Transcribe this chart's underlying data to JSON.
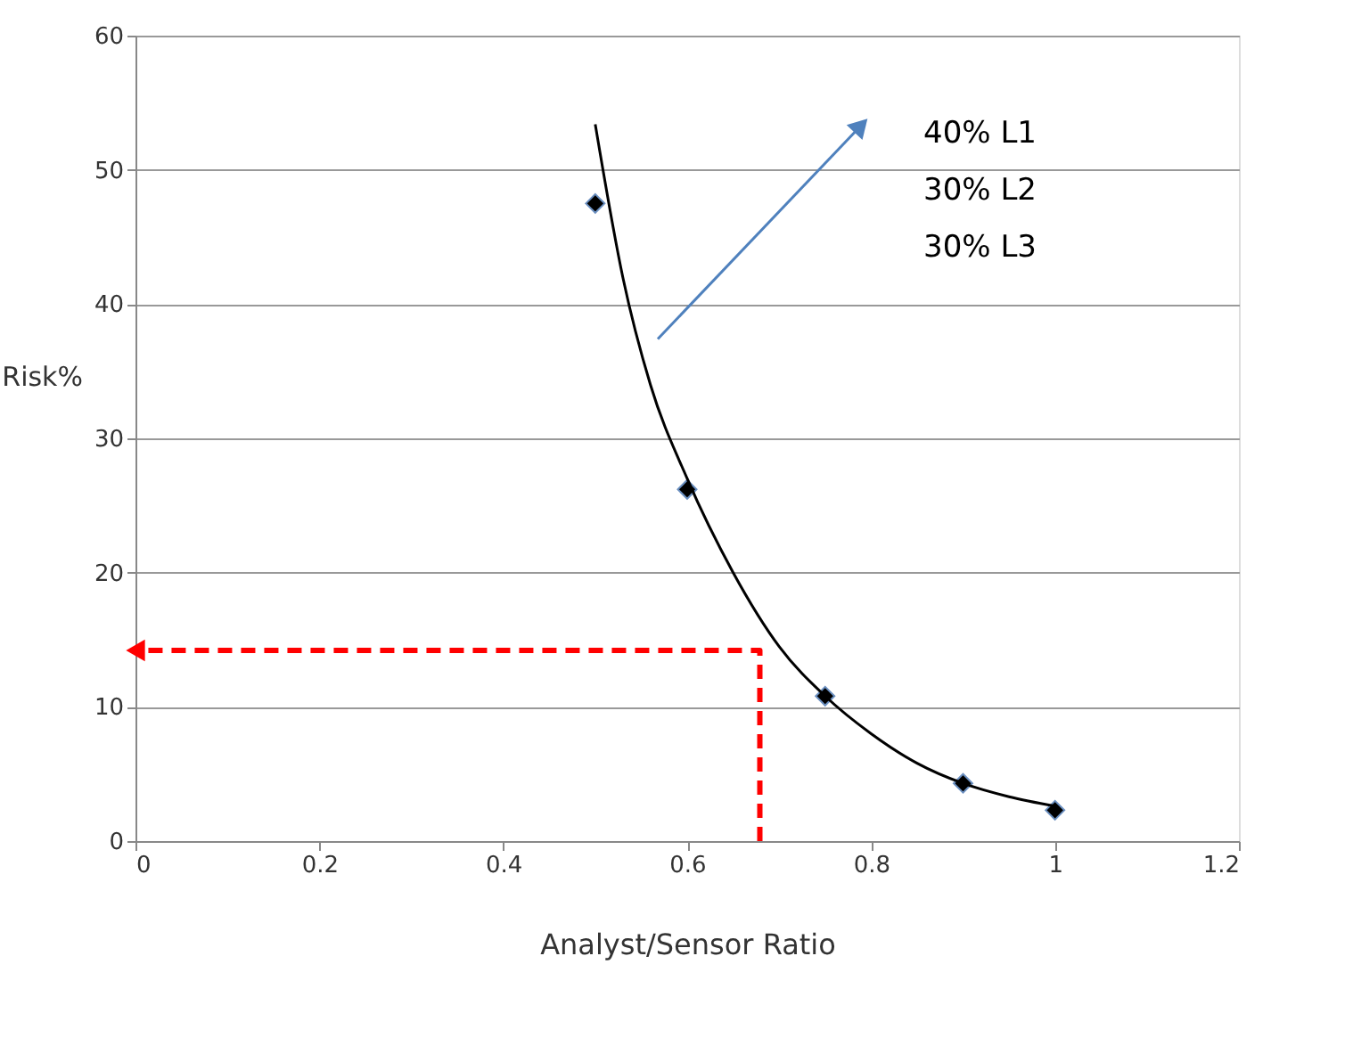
{
  "chart_data": {
    "type": "scatter",
    "xlabel": "Analyst/Sensor Ratio",
    "ylabel": "Risk%",
    "xlim": [
      0,
      1.2
    ],
    "xticks": [
      0,
      0.2,
      0.4,
      0.6,
      0.8,
      1,
      1.2
    ],
    "ylim": [
      0,
      60
    ],
    "yticks": [
      0,
      10,
      20,
      30,
      40,
      50,
      60
    ],
    "grid": "y",
    "series": [
      {
        "marker": "diamond",
        "color": "#000000",
        "x": [
          0.5,
          0.6,
          0.75,
          0.9,
          1.0
        ],
        "values": [
          47.5,
          26.2,
          10.8,
          4.3,
          2.3
        ]
      },
      {
        "type": "line",
        "line_style": "solid",
        "color": "#000000",
        "x": [
          0.5,
          0.53,
          0.56,
          0.6,
          0.65,
          0.7,
          0.75,
          0.8,
          0.85,
          0.9,
          0.95,
          1.0
        ],
        "values": [
          53.4,
          42,
          34,
          27,
          20,
          14.5,
          10.8,
          8,
          5.8,
          4.3,
          3.3,
          2.6
        ]
      },
      {
        "type": "line",
        "line_style": "dashed",
        "color": "#ff0000",
        "x": [
          0.679,
          0.679,
          0.0
        ],
        "values": [
          0,
          14.2,
          14.2
        ]
      },
      {
        "type": "line",
        "line_style": "solid",
        "color": "#4f81bd",
        "x": [
          0.568,
          0.789
        ],
        "values": [
          37.4,
          53.3
        ]
      }
    ],
    "annotations": [
      "40% L1",
      "30% L2",
      "30% L3"
    ]
  }
}
